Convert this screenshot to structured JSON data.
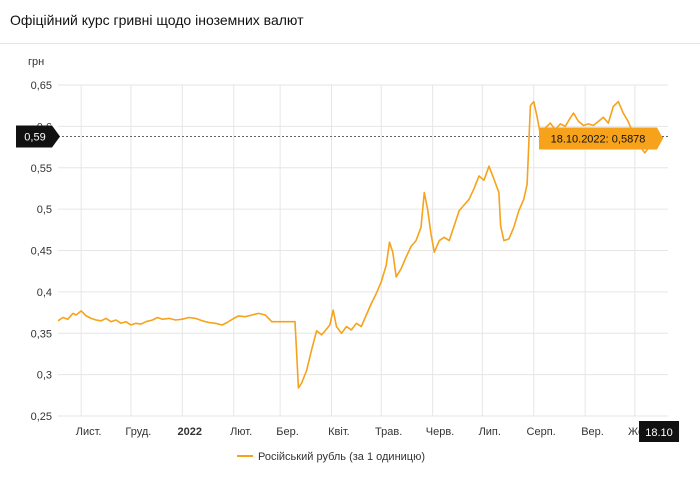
{
  "header": {
    "title": "Офіційний курс гривні щодо іноземних валют"
  },
  "chart_data": {
    "type": "line",
    "title": "Офіційний курс гривні щодо іноземних валют",
    "ylabel": "грн",
    "ylim": [
      0.25,
      0.65
    ],
    "yticks": [
      "0,25",
      "0,3",
      "0,35",
      "0,4",
      "0,45",
      "0,5",
      "0,55",
      "0,6",
      "0,65"
    ],
    "x_ticks": [
      {
        "label": "Лист.",
        "date": "2021-11-01"
      },
      {
        "label": "Груд.",
        "date": "2021-12-01"
      },
      {
        "label": "2022",
        "date": "2022-01-01",
        "bold": true
      },
      {
        "label": "Лют.",
        "date": "2022-02-01"
      },
      {
        "label": "Бер.",
        "date": "2022-03-01"
      },
      {
        "label": "Квіт.",
        "date": "2022-04-01"
      },
      {
        "label": "Трав.",
        "date": "2022-05-01"
      },
      {
        "label": "Черв.",
        "date": "2022-06-01"
      },
      {
        "label": "Лип.",
        "date": "2022-07-01"
      },
      {
        "label": "Серп.",
        "date": "2022-08-01"
      },
      {
        "label": "Вер.",
        "date": "2022-09-01"
      },
      {
        "label": "Жовт.",
        "date": "2022-10-01"
      }
    ],
    "x_range": [
      "2021-10-18",
      "2022-10-21"
    ],
    "grid": true,
    "legend_position": "bottom",
    "series": [
      {
        "name": "Російський рубль (за 1 одиницю)",
        "color": "#f7a21b",
        "points": [
          [
            "2021-10-18",
            0.365
          ],
          [
            "2021-10-21",
            0.369
          ],
          [
            "2021-10-24",
            0.367
          ],
          [
            "2021-10-27",
            0.374
          ],
          [
            "2021-10-29",
            0.372
          ],
          [
            "2021-11-01",
            0.377
          ],
          [
            "2021-11-04",
            0.371
          ],
          [
            "2021-11-07",
            0.368
          ],
          [
            "2021-11-10",
            0.366
          ],
          [
            "2021-11-13",
            0.365
          ],
          [
            "2021-11-16",
            0.368
          ],
          [
            "2021-11-19",
            0.364
          ],
          [
            "2021-11-22",
            0.366
          ],
          [
            "2021-11-25",
            0.362
          ],
          [
            "2021-11-28",
            0.364
          ],
          [
            "2021-12-01",
            0.36
          ],
          [
            "2021-12-04",
            0.362
          ],
          [
            "2021-12-07",
            0.361
          ],
          [
            "2021-12-10",
            0.364
          ],
          [
            "2021-12-14",
            0.366
          ],
          [
            "2021-12-17",
            0.369
          ],
          [
            "2021-12-20",
            0.367
          ],
          [
            "2021-12-24",
            0.368
          ],
          [
            "2021-12-28",
            0.366
          ],
          [
            "2022-01-01",
            0.367
          ],
          [
            "2022-01-05",
            0.369
          ],
          [
            "2022-01-09",
            0.368
          ],
          [
            "2022-01-13",
            0.365
          ],
          [
            "2022-01-17",
            0.363
          ],
          [
            "2022-01-21",
            0.362
          ],
          [
            "2022-01-25",
            0.36
          ],
          [
            "2022-01-28",
            0.363
          ],
          [
            "2022-02-01",
            0.368
          ],
          [
            "2022-02-04",
            0.371
          ],
          [
            "2022-02-08",
            0.37
          ],
          [
            "2022-02-12",
            0.372
          ],
          [
            "2022-02-16",
            0.374
          ],
          [
            "2022-02-20",
            0.372
          ],
          [
            "2022-02-23",
            0.366
          ],
          [
            "2022-02-24",
            0.364
          ],
          [
            "2022-03-08",
            0.364
          ],
          [
            "2022-03-10",
            0.364
          ],
          [
            "2022-03-11",
            0.325
          ],
          [
            "2022-03-12",
            0.284
          ],
          [
            "2022-03-14",
            0.29
          ],
          [
            "2022-03-17",
            0.305
          ],
          [
            "2022-03-20",
            0.33
          ],
          [
            "2022-03-23",
            0.353
          ],
          [
            "2022-03-26",
            0.348
          ],
          [
            "2022-03-29",
            0.355
          ],
          [
            "2022-03-31",
            0.36
          ],
          [
            "2022-04-02",
            0.378
          ],
          [
            "2022-04-04",
            0.358
          ],
          [
            "2022-04-07",
            0.35
          ],
          [
            "2022-04-10",
            0.358
          ],
          [
            "2022-04-13",
            0.354
          ],
          [
            "2022-04-16",
            0.362
          ],
          [
            "2022-04-19",
            0.358
          ],
          [
            "2022-04-22",
            0.372
          ],
          [
            "2022-04-25",
            0.386
          ],
          [
            "2022-04-28",
            0.398
          ],
          [
            "2022-05-01",
            0.412
          ],
          [
            "2022-05-04",
            0.432
          ],
          [
            "2022-05-06",
            0.46
          ],
          [
            "2022-05-08",
            0.448
          ],
          [
            "2022-05-10",
            0.418
          ],
          [
            "2022-05-13",
            0.428
          ],
          [
            "2022-05-16",
            0.442
          ],
          [
            "2022-05-19",
            0.455
          ],
          [
            "2022-05-22",
            0.462
          ],
          [
            "2022-05-25",
            0.478
          ],
          [
            "2022-05-27",
            0.52
          ],
          [
            "2022-05-29",
            0.5
          ],
          [
            "2022-05-31",
            0.47
          ],
          [
            "2022-06-02",
            0.448
          ],
          [
            "2022-06-05",
            0.462
          ],
          [
            "2022-06-08",
            0.466
          ],
          [
            "2022-06-11",
            0.462
          ],
          [
            "2022-06-14",
            0.48
          ],
          [
            "2022-06-17",
            0.498
          ],
          [
            "2022-06-20",
            0.505
          ],
          [
            "2022-06-23",
            0.512
          ],
          [
            "2022-06-26",
            0.525
          ],
          [
            "2022-06-29",
            0.54
          ],
          [
            "2022-07-02",
            0.535
          ],
          [
            "2022-07-05",
            0.552
          ],
          [
            "2022-07-08",
            0.536
          ],
          [
            "2022-07-11",
            0.52
          ],
          [
            "2022-07-12",
            0.48
          ],
          [
            "2022-07-14",
            0.462
          ],
          [
            "2022-07-17",
            0.464
          ],
          [
            "2022-07-20",
            0.478
          ],
          [
            "2022-07-23",
            0.498
          ],
          [
            "2022-07-26",
            0.512
          ],
          [
            "2022-07-28",
            0.53
          ],
          [
            "2022-07-30",
            0.625
          ],
          [
            "2022-08-01",
            0.63
          ],
          [
            "2022-08-03",
            0.612
          ],
          [
            "2022-08-05",
            0.59
          ],
          [
            "2022-08-08",
            0.598
          ],
          [
            "2022-08-11",
            0.604
          ],
          [
            "2022-08-14",
            0.596
          ],
          [
            "2022-08-17",
            0.603
          ],
          [
            "2022-08-20",
            0.6
          ],
          [
            "2022-08-23",
            0.61
          ],
          [
            "2022-08-25",
            0.616
          ],
          [
            "2022-08-28",
            0.606
          ],
          [
            "2022-08-31",
            0.601
          ],
          [
            "2022-09-03",
            0.603
          ],
          [
            "2022-09-06",
            0.601
          ],
          [
            "2022-09-09",
            0.606
          ],
          [
            "2022-09-12",
            0.611
          ],
          [
            "2022-09-15",
            0.604
          ],
          [
            "2022-09-18",
            0.624
          ],
          [
            "2022-09-21",
            0.63
          ],
          [
            "2022-09-24",
            0.616
          ],
          [
            "2022-09-27",
            0.606
          ],
          [
            "2022-09-29",
            0.596
          ],
          [
            "2022-10-01",
            0.582
          ],
          [
            "2022-10-04",
            0.576
          ],
          [
            "2022-10-07",
            0.568
          ],
          [
            "2022-10-10",
            0.576
          ],
          [
            "2022-10-13",
            0.584
          ],
          [
            "2022-10-16",
            0.582
          ],
          [
            "2022-10-18",
            0.5878
          ]
        ]
      }
    ],
    "crosshair": {
      "y_label": "0,59",
      "x_label": "18.10",
      "tooltip": "18.10.2022: 0,5878",
      "date": "2022-10-18",
      "value": 0.5878
    }
  }
}
